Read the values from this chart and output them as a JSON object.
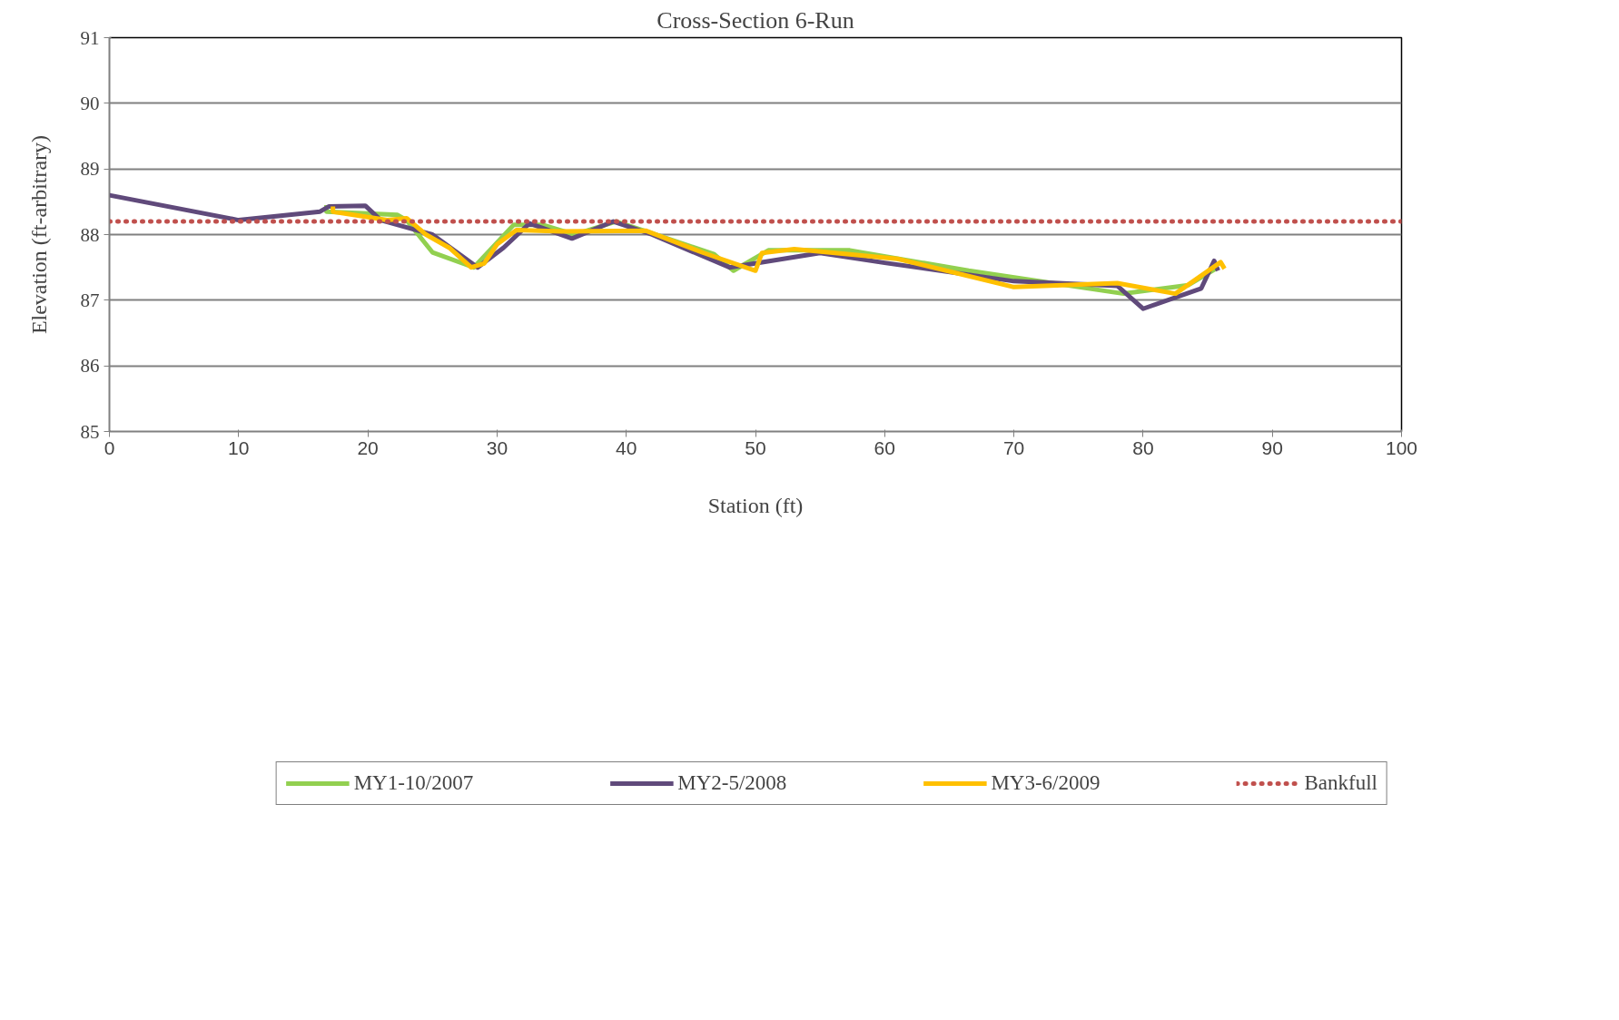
{
  "chart_data": {
    "type": "line",
    "title": "Cross-Section 6-Run",
    "xlabel": "Station (ft)",
    "ylabel": "Elevation (ft-arbitrary)",
    "xlim": [
      0,
      100
    ],
    "xticks": [
      0,
      10,
      20,
      30,
      40,
      50,
      60,
      70,
      80,
      90,
      100
    ],
    "ylim": [
      85,
      91
    ],
    "yticks": [
      85,
      86,
      87,
      88,
      89,
      90,
      91
    ],
    "grid": "y",
    "legend": "bottom",
    "line_style": "solid",
    "series": [
      {
        "name": "MY1-10/2007",
        "color": "#92d050",
        "x": [
          16.8,
          16.8,
          22.3,
          23,
          25,
          28.2,
          31.3,
          33.5,
          36,
          39.2,
          42,
          46.8,
          48.3,
          51,
          57.3,
          66.5,
          78.5,
          83.5,
          85.8
        ],
        "values": [
          88.45,
          88.35,
          88.3,
          88.22,
          87.73,
          87.5,
          88.15,
          88.15,
          88.0,
          88.2,
          88.02,
          87.7,
          87.45,
          87.76,
          87.76,
          87.45,
          87.1,
          87.23,
          87.5
        ]
      },
      {
        "name": "MY2-5/2008",
        "color": "#604a7b",
        "x": [
          0,
          10,
          16.3,
          17,
          19.8,
          21,
          25,
          28.5,
          30.5,
          32.5,
          35.8,
          39,
          42,
          48,
          55,
          60,
          70,
          78,
          80,
          84.5,
          85.5,
          85.8
        ],
        "values": [
          88.6,
          88.22,
          88.35,
          88.43,
          88.44,
          88.22,
          88.0,
          87.5,
          87.8,
          88.17,
          87.94,
          88.2,
          88.0,
          87.5,
          87.72,
          87.57,
          87.29,
          87.22,
          86.87,
          87.18,
          87.6,
          87.45
        ]
      },
      {
        "name": "MY3-6/2009",
        "color": "#ffc000",
        "x": [
          17.3,
          17.3,
          21.5,
          23,
          24.5,
          26.3,
          28,
          29,
          30,
          31.5,
          35,
          41.5,
          46,
          50,
          50.5,
          53,
          61,
          70,
          78,
          82.5,
          86,
          86.3
        ],
        "values": [
          88.43,
          88.35,
          88.22,
          88.25,
          88.0,
          87.8,
          87.5,
          87.56,
          87.85,
          88.07,
          88.05,
          88.06,
          87.72,
          87.45,
          87.72,
          87.78,
          87.63,
          87.2,
          87.26,
          87.1,
          87.58,
          87.48
        ]
      }
    ],
    "ref_lines": [
      {
        "axis": "y",
        "value": 88.2,
        "label": "Bankfull",
        "color": "#c0504d",
        "line_style": "dotted"
      }
    ]
  }
}
